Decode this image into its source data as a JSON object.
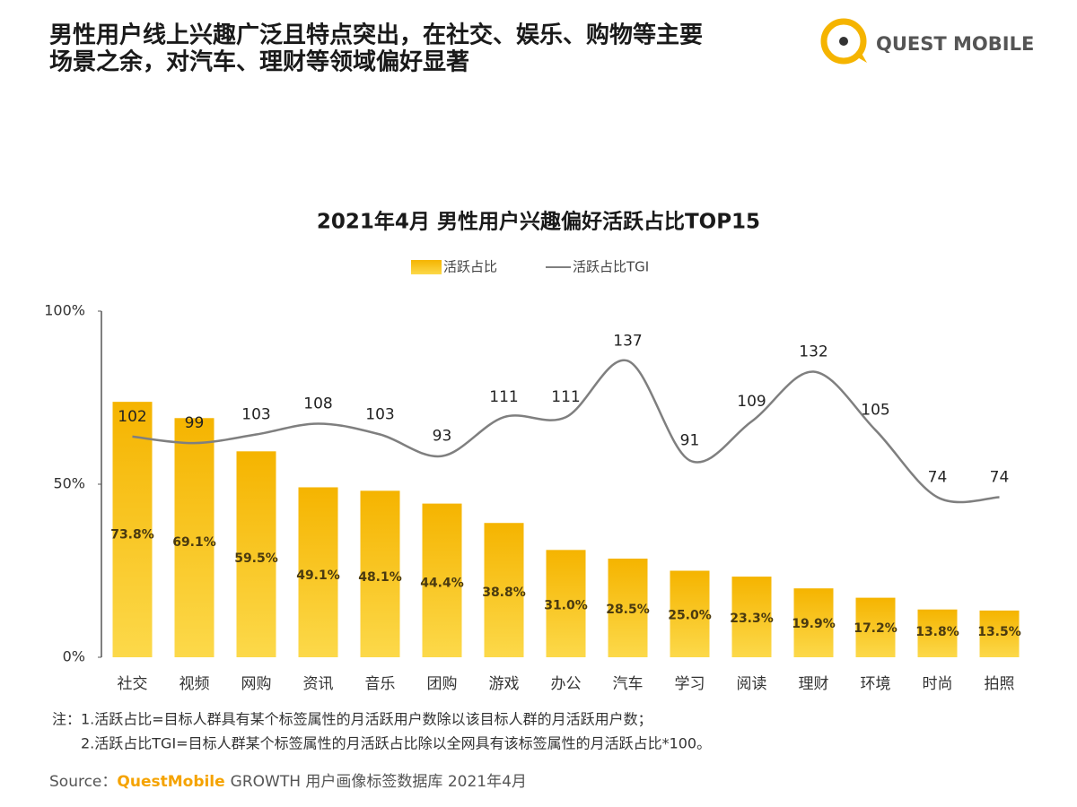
{
  "header": {
    "title_lines": [
      "男性用户线上兴趣广泛且特点突出，在社交、娱乐、购物等主要",
      "场景之余，对汽车、理财等领域偏好显著"
    ],
    "logo": "QUEST MOBILE"
  },
  "chart_data": {
    "type": "bar_line",
    "title": "2021年4月 男性用户兴趣偏好活跃占比TOP15",
    "categories": [
      "社交",
      "视频",
      "网购",
      "资讯",
      "音乐",
      "团购",
      "游戏",
      "办公",
      "汽车",
      "学习",
      "阅读",
      "理财",
      "环境",
      "时尚",
      "拍照"
    ],
    "series": [
      {
        "name": "活跃占比",
        "type": "bar",
        "color": "#f6bd0f",
        "values": [
          73.8,
          69.1,
          59.5,
          49.1,
          48.1,
          44.4,
          38.8,
          31.0,
          28.5,
          25.0,
          23.3,
          19.9,
          17.2,
          13.8,
          13.5
        ],
        "value_labels": [
          "73.8%",
          "69.1%",
          "59.5%",
          "49.1%",
          "48.1%",
          "44.4%",
          "38.8%",
          "31.0%",
          "28.5%",
          "25.0%",
          "23.3%",
          "19.9%",
          "17.2%",
          "13.8%",
          "13.5%"
        ]
      },
      {
        "name": "活跃占比TGI",
        "type": "line",
        "axis": "y2",
        "color": "#7f7f7f",
        "values": [
          102,
          99,
          103,
          108,
          103,
          93,
          111,
          111,
          137,
          91,
          109,
          132,
          105,
          74,
          74
        ]
      }
    ],
    "ylim": [
      0,
      100
    ],
    "yticks": [
      {
        "value": 0,
        "label": "0%"
      },
      {
        "value": 50,
        "label": "50%"
      },
      {
        "value": 100,
        "label": "100%"
      }
    ],
    "y2lim": [
      0,
      160
    ],
    "legend": "top"
  },
  "notes": [
    "注：1.活跃占比=目标人群具有某个标签属性的月活跃用户数除以该目标人群的月活跃用户数；",
    "2.活跃占比TGI=目标人群某个标签属性的月活跃占比除以全网具有该标签属性的月活跃占比*100。"
  ],
  "source": {
    "prefix": "Source：",
    "brand": "QuestMobile",
    "rest": "GROWTH 用户画像标签数据库 2021年4月"
  }
}
